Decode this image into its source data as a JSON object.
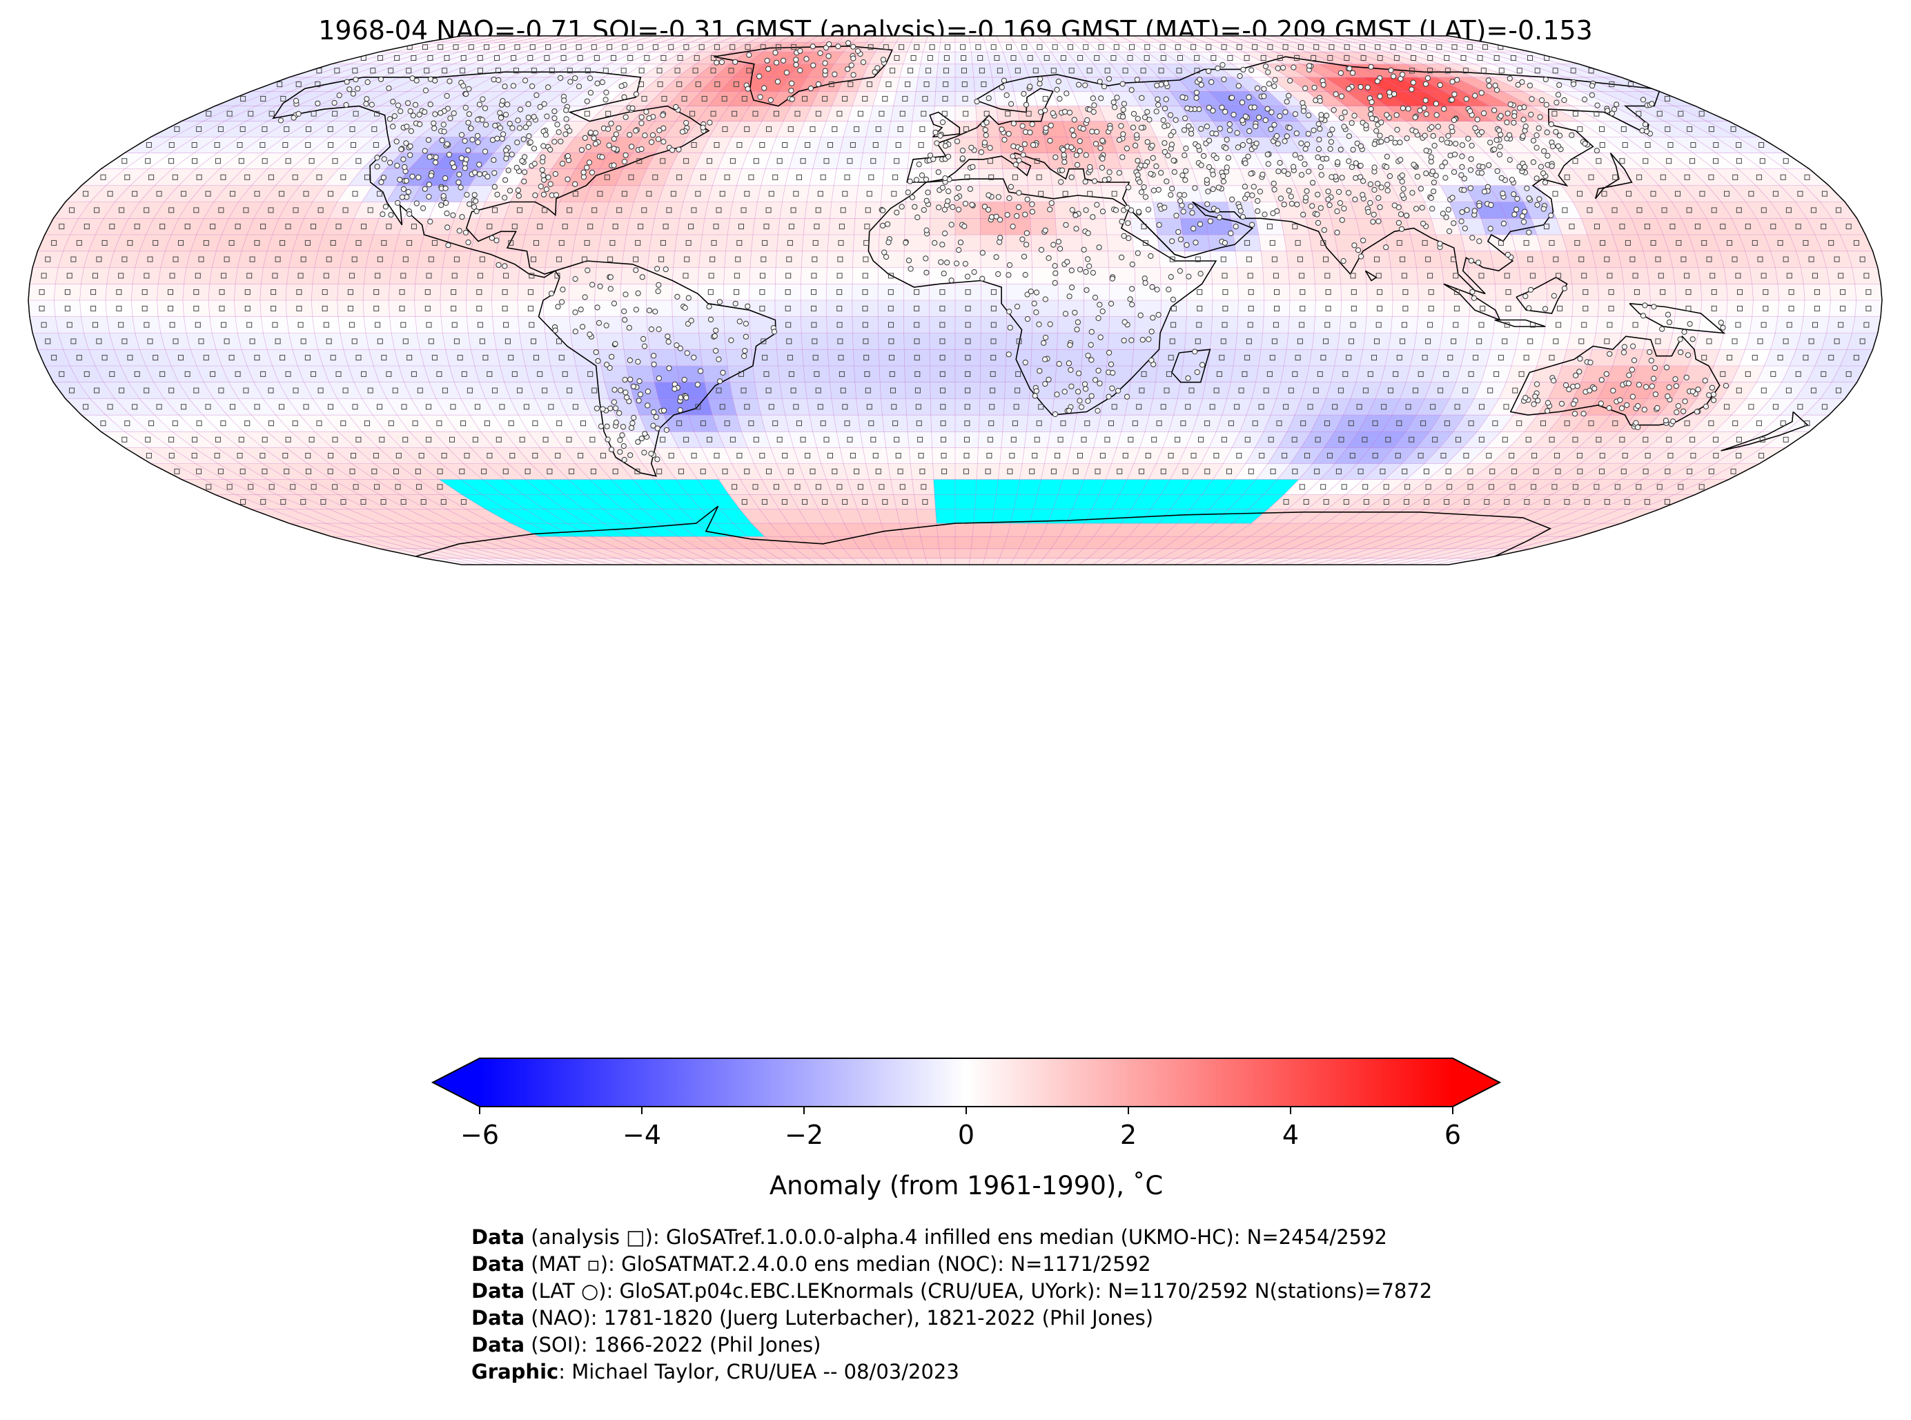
{
  "header": {
    "title": "1968-04 NAO=-0.71 SOI=-0.31 GMST (analysis)=-0.169 GMST (MAT)=-0.209 GMST (LAT)=-0.153"
  },
  "map": {
    "projection": "Robinson",
    "grid_resolution_deg": 5,
    "colormap": "bwr",
    "missing_color": "#00ffff",
    "markers": {
      "analysis": "square",
      "MAT": "small filled square",
      "LAT": "circle"
    },
    "anomaly_regions": [
      {
        "region": "Greenland / Baffin Bay",
        "lon": [
          -75,
          -25
        ],
        "lat": [
          55,
          85
        ],
        "anomaly": 3.2
      },
      {
        "region": "Eastern North America",
        "lon": [
          -90,
          -60
        ],
        "lat": [
          30,
          55
        ],
        "anomaly": 2.0
      },
      {
        "region": "Western United States",
        "lon": [
          -120,
          -95
        ],
        "lat": [
          30,
          50
        ],
        "anomaly": -2.8
      },
      {
        "region": "North-central Siberia",
        "lon": [
          90,
          140
        ],
        "lat": [
          55,
          75
        ],
        "anomaly": 4.8
      },
      {
        "region": "Europe / Eastern Europe",
        "lon": [
          0,
          45
        ],
        "lat": [
          40,
          60
        ],
        "anomaly": 2.3
      },
      {
        "region": "Western Siberia / Ural",
        "lon": [
          55,
          85
        ],
        "lat": [
          50,
          70
        ],
        "anomaly": -2.5
      },
      {
        "region": "Southern China",
        "lon": [
          100,
          120
        ],
        "lat": [
          20,
          35
        ],
        "anomaly": -2.7
      },
      {
        "region": "Arabian Peninsula",
        "lon": [
          40,
          60
        ],
        "lat": [
          15,
          30
        ],
        "anomaly": -2.4
      },
      {
        "region": "Northern Africa / Sahara",
        "lon": [
          0,
          20
        ],
        "lat": [
          20,
          30
        ],
        "anomaly": 1.8
      },
      {
        "region": "Southern South America",
        "lon": [
          -65,
          -45
        ],
        "lat": [
          -40,
          -20
        ],
        "anomaly": -2.8
      },
      {
        "region": "Australia",
        "lon": [
          115,
          155
        ],
        "lat": [
          -40,
          -15
        ],
        "anomaly": 2.0
      },
      {
        "region": "South Indian Ocean",
        "lon": [
          70,
          110
        ],
        "lat": [
          -55,
          -30
        ],
        "anomaly": -2.2
      },
      {
        "region": "Antarctica",
        "lon": [
          -180,
          180
        ],
        "lat": [
          -90,
          -65
        ],
        "anomaly": 1.5
      }
    ],
    "missing_regions": [
      {
        "lon": [
          -120,
          -55
        ],
        "lat": [
          -75,
          -55
        ]
      },
      {
        "lon": [
          -5,
          80
        ],
        "lat": [
          -70,
          -55
        ]
      }
    ]
  },
  "colorbar": {
    "ticks": [
      "−6",
      "−4",
      "−2",
      "0",
      "2",
      "4",
      "6"
    ],
    "tick_values": [
      -6,
      -4,
      -2,
      0,
      2,
      4,
      6
    ],
    "vmin": -6,
    "vmax": 6,
    "extend": "both",
    "label": "Anomaly (from 1961-1990), ˚C",
    "colors": {
      "min": "#0000ff",
      "mid": "#ffffff",
      "max": "#ff0000"
    }
  },
  "credits": [
    {
      "bold": "Data",
      "text": " (analysis □): GloSATref.1.0.0.0-alpha.4 infilled ens median (UKMO-HC): N=2454/2592"
    },
    {
      "bold": "Data",
      "text": " (MAT ▫): GloSATMAT.2.4.0.0 ens median (NOC): N=1171/2592"
    },
    {
      "bold": "Data",
      "text": " (LAT ○): GloSAT.p04c.EBC.LEKnormals (CRU/UEA, UYork): N=1170/2592 N(stations)=7872"
    },
    {
      "bold": "Data",
      "text": " (NAO): 1781-1820 (Juerg Luterbacher), 1821-2022 (Phil Jones)"
    },
    {
      "bold": "Data",
      "text": " (SOI): 1866-2022 (Phil Jones)"
    },
    {
      "bold": "Graphic",
      "text": ": Michael Taylor, CRU/UEA -- 08/03/2023"
    }
  ]
}
